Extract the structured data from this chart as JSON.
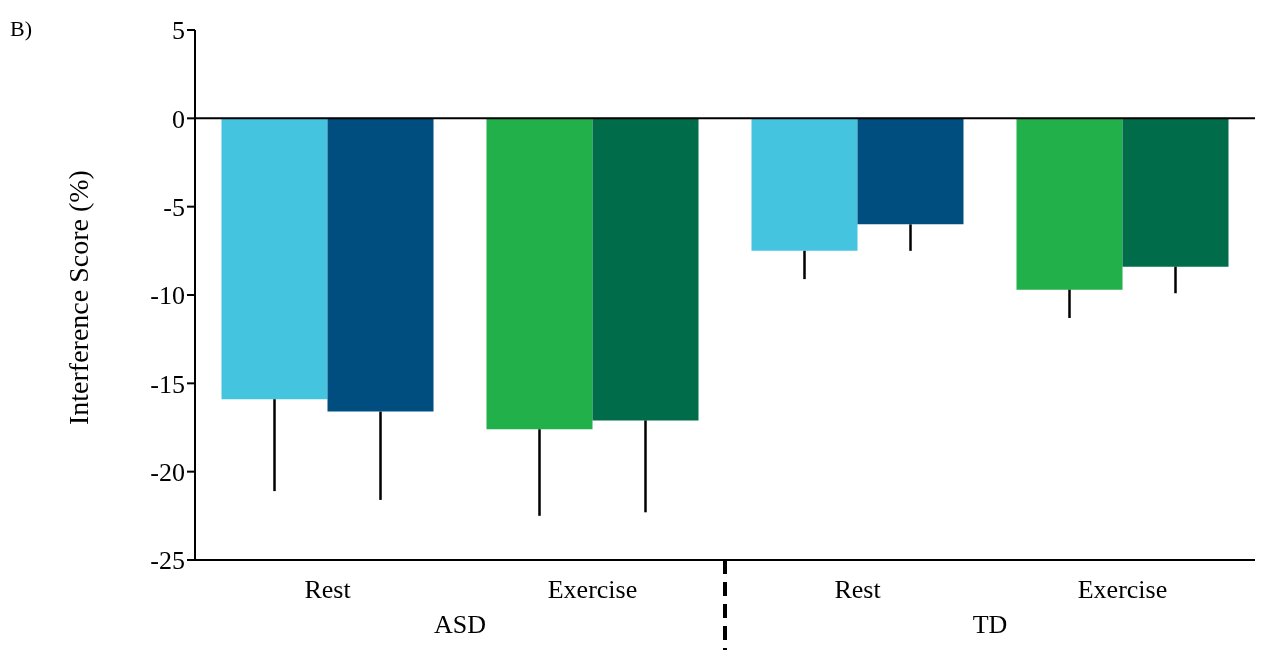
{
  "chart_data": {
    "type": "bar",
    "ylabel": "Interference Score (%)",
    "categories": [
      "Rest",
      "Exercise",
      "Rest",
      "Exercise"
    ],
    "series": [
      {
        "colors": [
          "#45c4e0",
          "#22b04a",
          "#45c4e0",
          "#22b04a"
        ],
        "values": [
          -15.9,
          -17.6,
          -7.5,
          -9.7
        ],
        "errors": [
          [
            -21.1,
            -15.9
          ],
          [
            -22.5,
            -17.6
          ],
          [
            -9.1,
            -7.5
          ],
          [
            -11.3,
            -9.7
          ]
        ]
      },
      {
        "colors": [
          "#004d80",
          "#006c4a",
          "#004d80",
          "#006c4a"
        ],
        "values": [
          -16.6,
          -17.1,
          -6.0,
          -8.4
        ],
        "errors": [
          [
            -21.6,
            -16.6
          ],
          [
            -22.3,
            -17.1
          ],
          [
            -7.5,
            -6.0
          ],
          [
            -9.9,
            -8.4
          ]
        ]
      }
    ],
    "ylim": [
      -25,
      5
    ],
    "yticks": [
      -25,
      -20,
      -15,
      -10,
      -5,
      0,
      5
    ],
    "ref_lines": [
      {
        "axis": "y",
        "value": 0,
        "color": "#000000",
        "line_style": "solid"
      }
    ],
    "annotations": [
      "B)",
      "ASD",
      "TD"
    ]
  }
}
